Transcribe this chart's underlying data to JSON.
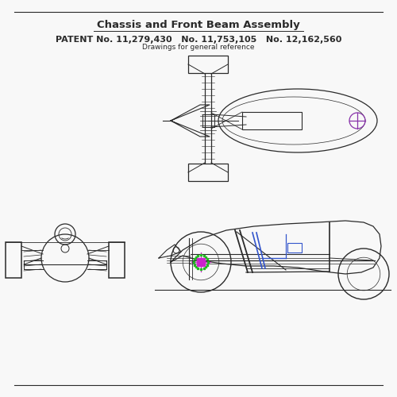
{
  "title": "Chassis and Front Beam Assembly",
  "patent_line1": "PATENT No. 11,279,430",
  "patent_line2": "No. 11,753,105",
  "patent_line3": "No. 12,162,560",
  "subtitle": "Drawings for general reference",
  "bg_color": "#f8f8f8",
  "line_color": "#2a2a2a",
  "blue_color": "#3355cc",
  "green_color": "#22bb22",
  "magenta_color": "#cc22cc",
  "purple_color": "#8833aa",
  "fig_width": 5.0,
  "fig_height": 5.0
}
